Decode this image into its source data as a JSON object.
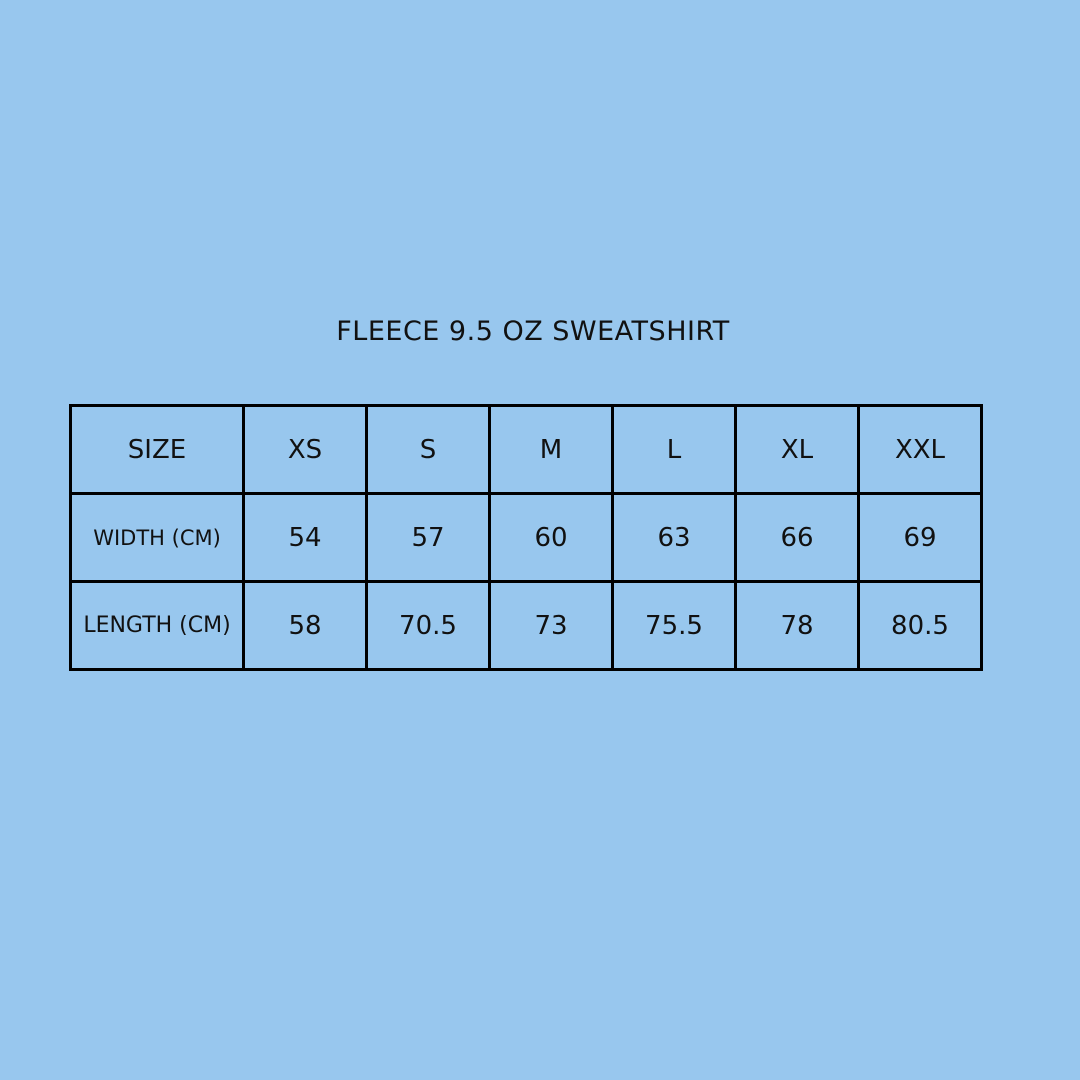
{
  "title": "FLEECE 9.5 OZ SWEATSHIRT",
  "table": {
    "rows": [
      {
        "label": "SIZE",
        "cells": [
          "XS",
          "S",
          "M",
          "L",
          "XL",
          "XXL"
        ]
      },
      {
        "label": "WIDTH (CM)",
        "cells": [
          "54",
          "57",
          "60",
          "63",
          "66",
          "69"
        ]
      },
      {
        "label": "LENGTH (CM)",
        "cells": [
          "58",
          "70.5",
          "73",
          "75.5",
          "78",
          "80.5"
        ]
      }
    ]
  },
  "colors": {
    "background": "#98c7ee",
    "border": "#000000",
    "text": "#111111"
  }
}
